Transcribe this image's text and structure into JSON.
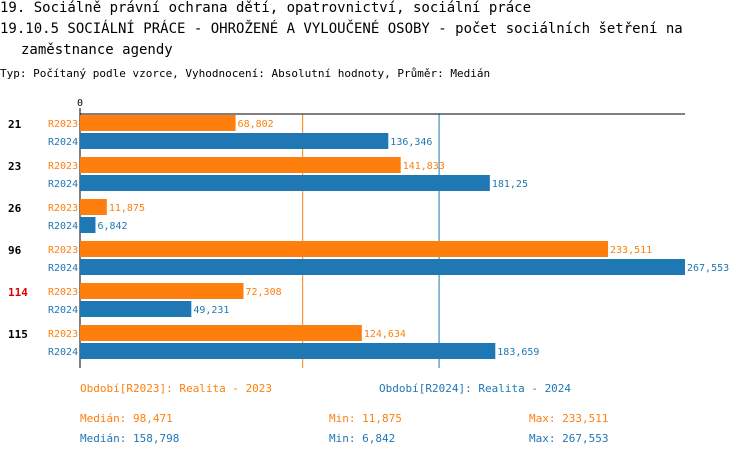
{
  "header": {
    "line1": "19. Sociálně právní ochrana dětí, opatrovnictví, sociální práce",
    "line2": "19.10.5 SOCIÁLNÍ PRÁCE - OHROŽENÉ A VYLOUČENÉ OSOBY - počet sociálních šetření na",
    "line3": "zaměstnance agendy",
    "subtitle": "Typ: Počítaný podle vzorce, Vyhodnocení: Absolutní hodnoty, Průměr: Medián"
  },
  "colors": {
    "r2023": "#ff7f0e",
    "r2024": "#1f77b4",
    "highlight": "#e00000"
  },
  "chart_data": {
    "type": "bar",
    "orientation": "horizontal",
    "x_axis_label": "0",
    "xlim": [
      0,
      267.553
    ],
    "categories": [
      {
        "label": "21",
        "highlight": false
      },
      {
        "label": "23",
        "highlight": false
      },
      {
        "label": "26",
        "highlight": false
      },
      {
        "label": "96",
        "highlight": false
      },
      {
        "label": "114",
        "highlight": true
      },
      {
        "label": "115",
        "highlight": false
      }
    ],
    "series": [
      {
        "name": "R2023",
        "values": [
          68.802,
          141.833,
          11.875,
          233.511,
          72.308,
          124.634
        ],
        "value_labels": [
          "68,802",
          "141,833",
          "11,875",
          "233,511",
          "72,308",
          "124,634"
        ]
      },
      {
        "name": "R2024",
        "values": [
          136.346,
          181.25,
          6.842,
          267.553,
          49.231,
          183.659
        ],
        "value_labels": [
          "136,346",
          "181,25",
          "6,842",
          "267,553",
          "49,231",
          "183,659"
        ]
      }
    ],
    "reference_lines": [
      {
        "series": "R2023",
        "statistic": "Medián",
        "value": 98.471
      },
      {
        "series": "R2024",
        "statistic": "Medián",
        "value": 158.798
      }
    ]
  },
  "legend": {
    "r2023_title": "Období[R2023]: Realita - 2023",
    "r2024_title": "Období[R2024]: Realita - 2024",
    "r2023_median": "Medián: 98,471",
    "r2023_min": "Min: 11,875",
    "r2023_max": "Max: 233,511",
    "r2024_median": "Medián: 158,798",
    "r2024_min": "Min: 6,842",
    "r2024_max": "Max: 267,553"
  }
}
